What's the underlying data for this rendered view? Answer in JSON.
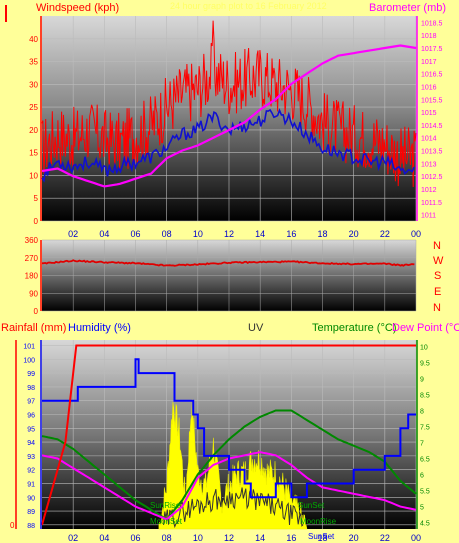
{
  "colors": {
    "background": "#ffff99",
    "wind_gust": "#ff0000",
    "wind_avg": "#1010d0",
    "barometer": "#ff00ff",
    "direction": "#e00000",
    "rainfall": "#ff0000",
    "humidity": "#0000ff",
    "uv": "#ffff00",
    "temperature": "#008800",
    "dew_point": "#ff00ff",
    "solar": "#333333"
  },
  "header": {
    "left_label": "Windspeed (kph)",
    "title": "24 hour graph plot to 16 February 2012",
    "right_label": "Barometer (mb)"
  },
  "compass": [
    "N",
    "W",
    "S",
    "E",
    "N"
  ],
  "bottom_labels": {
    "rainfall": "Rainfall (mm)",
    "humidity": "Humidity (%)",
    "uv": "UV",
    "temperature": "Temperature (°C)",
    "dew_point": "Dew Point (°C"
  },
  "annotations": {
    "sunrise": "SunRise",
    "sunset": "SunSet",
    "moonrise": "MoonRise",
    "moonset": "MoonSet",
    "sunset2": "SunSet"
  },
  "chart_data": [
    {
      "type": "line",
      "name": "wind-pressure",
      "x_ticks": [
        "02",
        "04",
        "06",
        "08",
        "10",
        "12",
        "14",
        "16",
        "18",
        "20",
        "22",
        "00"
      ],
      "y_left_ticks": [
        0,
        5,
        10,
        15,
        20,
        25,
        30,
        35,
        40
      ],
      "ylim_left": [
        0,
        45
      ],
      "y_right_ticks": [
        1011,
        1011.5,
        1012,
        1012.5,
        1013,
        1013.5,
        1014,
        1014.5,
        1015,
        1015.5,
        1016,
        1016.5,
        1017,
        1017.5,
        1018,
        1018.5
      ],
      "ylim_right": [
        1010.75,
        1018.75
      ],
      "xlim": [
        0,
        24
      ],
      "x": [
        0,
        1,
        2,
        3,
        4,
        5,
        6,
        7,
        8,
        9,
        10,
        11,
        12,
        13,
        14,
        15,
        16,
        17,
        18,
        19,
        20,
        21,
        22,
        23,
        24
      ],
      "series": [
        {
          "name": "gust",
          "axis": "left",
          "values": [
            16,
            19,
            18,
            20,
            18,
            17,
            19,
            21,
            25,
            28,
            29,
            33,
            30,
            31,
            32,
            30,
            29,
            26,
            22,
            20,
            19,
            18,
            17,
            14,
            14
          ]
        },
        {
          "name": "average",
          "axis": "left",
          "values": [
            10,
            13,
            12,
            13,
            11,
            12,
            13,
            14,
            16,
            19,
            20,
            23,
            20,
            21,
            22,
            24,
            22,
            19,
            16,
            15,
            14,
            13,
            13,
            11,
            11
          ]
        },
        {
          "name": "pressure",
          "axis": "right",
          "values": [
            1012.7,
            1012.8,
            1012.5,
            1012.3,
            1012.1,
            1012.2,
            1012.4,
            1012.6,
            1013.2,
            1013.5,
            1013.7,
            1014.0,
            1014.3,
            1014.6,
            1015.1,
            1015.5,
            1016.1,
            1016.5,
            1016.9,
            1017.2,
            1017.3,
            1017.4,
            1017.5,
            1017.6,
            1017.5
          ]
        }
      ],
      "spike": {
        "x": 11,
        "value": 44
      }
    },
    {
      "type": "line",
      "name": "wind-direction",
      "y_ticks": [
        0,
        90,
        180,
        270,
        360
      ],
      "ylim": [
        0,
        360
      ],
      "xlim": [
        0,
        24
      ],
      "x": [
        0,
        2,
        4,
        6,
        8,
        10,
        12,
        14,
        16,
        18,
        20,
        22,
        23,
        24
      ],
      "values": [
        240,
        255,
        247,
        242,
        230,
        236,
        245,
        248,
        250,
        242,
        238,
        240,
        232,
        236
      ]
    },
    {
      "type": "line",
      "name": "rain-humidity-temp-uv",
      "x_ticks": [
        "02",
        "04",
        "06",
        "08",
        "10",
        "12",
        "14",
        "16",
        "18",
        "20",
        "22",
        "00"
      ],
      "y_left_ticks": [
        88,
        89,
        90,
        91,
        92,
        93,
        94,
        95,
        96,
        97,
        98,
        99,
        100,
        101
      ],
      "ylim_left": [
        87.7,
        101.4
      ],
      "y_right_ticks": [
        4.5,
        5,
        5.5,
        6,
        6.5,
        7,
        7.5,
        8,
        8.5,
        9,
        9.5,
        10
      ],
      "ylim_right": [
        4.3,
        10.2
      ],
      "y_rain_ticks": [
        0
      ],
      "xlim": [
        0,
        24
      ],
      "series": [
        {
          "name": "rainfall",
          "axis": "left",
          "x": [
            0,
            1.5,
            2.2,
            3,
            24
          ],
          "values": [
            88,
            94,
            101,
            101,
            101
          ]
        },
        {
          "name": "humidity",
          "axis": "left",
          "x": [
            0,
            1,
            2,
            2.3,
            5.8,
            6,
            6.2,
            8,
            8.5,
            9,
            9.7,
            10,
            10.4,
            11,
            12,
            13,
            13.4,
            14,
            15,
            16,
            17,
            18,
            20,
            21,
            22,
            23,
            23.5,
            24
          ],
          "values": [
            97,
            97,
            97,
            98,
            98,
            100,
            99,
            99,
            97,
            97,
            96,
            95,
            93,
            93,
            92,
            91,
            90,
            90,
            91,
            90,
            91,
            91,
            92,
            92,
            93,
            95,
            96,
            96
          ]
        },
        {
          "name": "temperature",
          "axis": "right",
          "x": [
            0,
            1,
            2,
            3,
            4,
            5,
            6,
            7,
            8,
            9,
            10,
            11,
            12,
            13,
            14,
            15,
            16,
            17,
            18,
            19,
            20,
            21,
            22,
            23,
            24
          ],
          "values": [
            7.2,
            7.1,
            6.8,
            6.4,
            6.0,
            5.6,
            5.2,
            4.9,
            4.6,
            5.2,
            6.0,
            6.6,
            7.1,
            7.5,
            7.8,
            8.0,
            8.0,
            7.7,
            7.4,
            7.1,
            6.9,
            6.7,
            6.4,
            5.8,
            5.4
          ]
        },
        {
          "name": "dew_point",
          "axis": "right",
          "x": [
            0,
            1,
            2,
            3,
            4,
            5,
            6,
            7,
            8,
            9,
            10,
            11,
            12,
            13,
            14,
            15,
            16,
            17,
            18,
            19,
            20,
            21,
            22,
            23,
            24
          ],
          "values": [
            6.6,
            6.5,
            6.2,
            5.9,
            5.6,
            5.3,
            5.0,
            4.8,
            4.6,
            5.0,
            5.9,
            6.3,
            6.5,
            6.6,
            6.7,
            6.6,
            6.3,
            5.9,
            5.6,
            5.5,
            5.4,
            5.3,
            5.2,
            5.0,
            4.9
          ]
        },
        {
          "name": "uv",
          "axis": "left",
          "x": [
            7.5,
            8,
            8.4,
            8.8,
            9.2,
            9.6,
            10,
            10.5,
            11,
            11.5,
            12,
            12.5,
            13,
            13.5,
            14,
            14.5,
            15,
            15.5,
            16,
            16.5,
            17
          ],
          "values": [
            88,
            91,
            97,
            95,
            90,
            97,
            92,
            91,
            94,
            90,
            91,
            92,
            92,
            93,
            93,
            92,
            92,
            91,
            90,
            89,
            88
          ]
        }
      ]
    }
  ]
}
